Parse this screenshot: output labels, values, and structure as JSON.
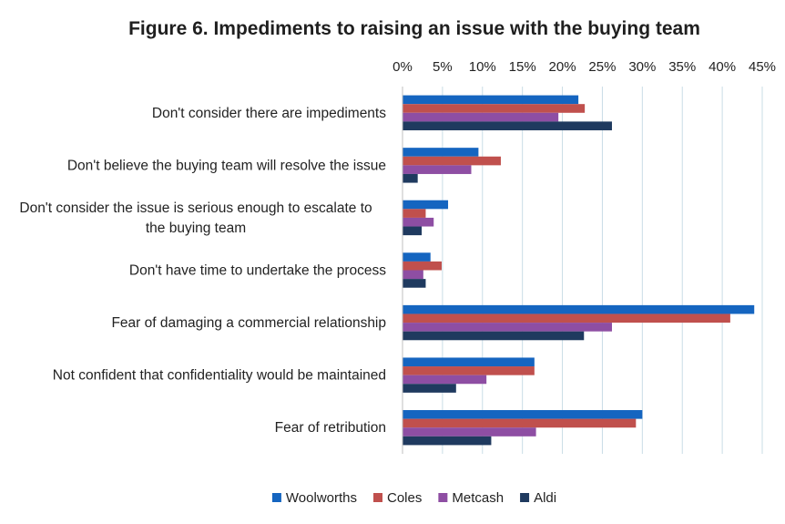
{
  "chart_data": {
    "type": "bar",
    "orientation": "horizontal",
    "title": "Figure 6. Impediments to raising an issue with the buying team",
    "xlabel": "",
    "ylabel": "",
    "xlim": [
      0,
      45
    ],
    "x_tick_labels": [
      "0%",
      "5%",
      "10%",
      "15%",
      "20%",
      "25%",
      "30%",
      "35%",
      "40%",
      "45%"
    ],
    "x_axis_position": "top",
    "grid": true,
    "legend_position": "bottom",
    "categories": [
      [
        "Don't consider there are impediments"
      ],
      [
        "Don't believe the buying team will resolve the issue"
      ],
      [
        "Don't consider the issue is serious enough to escalate to",
        "the buying team"
      ],
      [
        "Don't have time to undertake the process"
      ],
      [
        "Fear of damaging a commercial relationship"
      ],
      [
        "Not confident that confidentiality would be maintained"
      ],
      [
        "Fear of retribution"
      ]
    ],
    "series": [
      {
        "name": "Woolworths",
        "color": "#1565c0",
        "values": [
          22,
          9.5,
          5.7,
          3.5,
          44,
          16.5,
          30
        ]
      },
      {
        "name": "Coles",
        "color": "#c0504d",
        "values": [
          22.8,
          12.3,
          2.9,
          4.9,
          41,
          16.5,
          29.2
        ]
      },
      {
        "name": "Metcash",
        "color": "#8e4ea3",
        "values": [
          19.5,
          8.6,
          3.9,
          2.6,
          26.2,
          10.5,
          16.7
        ]
      },
      {
        "name": "Aldi",
        "color": "#1f3a5f",
        "values": [
          26.2,
          1.9,
          2.4,
          2.9,
          22.7,
          6.7,
          11.1
        ]
      }
    ]
  }
}
